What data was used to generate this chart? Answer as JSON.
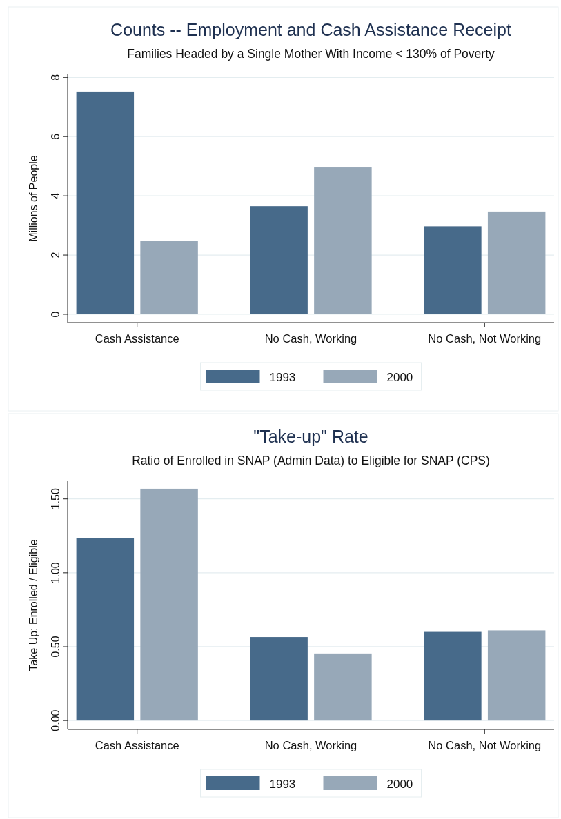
{
  "chart_data": [
    {
      "type": "bar",
      "title": "Counts -- Employment and Cash Assistance Receipt",
      "subtitle": "Families Headed by a Single Mother With Income < 130% of Poverty",
      "ylabel": "Millions of People",
      "categories": [
        "Cash Assistance",
        "No Cash, Working",
        "No Cash, Not Working"
      ],
      "series": [
        {
          "name": "1993",
          "color": "#476a8a",
          "values": [
            7.52,
            3.65,
            2.97
          ]
        },
        {
          "name": "2000",
          "color": "#97a8b8",
          "values": [
            2.47,
            4.98,
            3.47
          ]
        }
      ],
      "ylim": [
        -0.28,
        8.1
      ],
      "yticks": [
        0,
        2,
        4,
        6,
        8
      ],
      "grid": "y",
      "legend": "bottom"
    },
    {
      "type": "bar",
      "title": "\"Take-up\" Rate",
      "subtitle": "Ratio of Enrolled in SNAP (Admin Data) to Eligible for SNAP (CPS)",
      "ylabel": "Take Up: Enrolled / Eligible",
      "categories": [
        "Cash Assistance",
        "No Cash, Working",
        "No Cash, Not Working"
      ],
      "series": [
        {
          "name": "1993",
          "color": "#476a8a",
          "values": [
            1.236,
            0.565,
            0.6
          ]
        },
        {
          "name": "2000",
          "color": "#97a8b8",
          "values": [
            1.569,
            0.454,
            0.61
          ]
        }
      ],
      "ylim": [
        -0.06,
        1.62
      ],
      "yticks": [
        {
          "value": 0,
          "label": "0.00"
        },
        {
          "value": 0.5,
          "label": "0.50"
        },
        {
          "value": 1,
          "label": "1.00"
        },
        {
          "value": 1.5,
          "label": "1.50"
        }
      ],
      "grid": "y",
      "legend": "bottom"
    }
  ]
}
